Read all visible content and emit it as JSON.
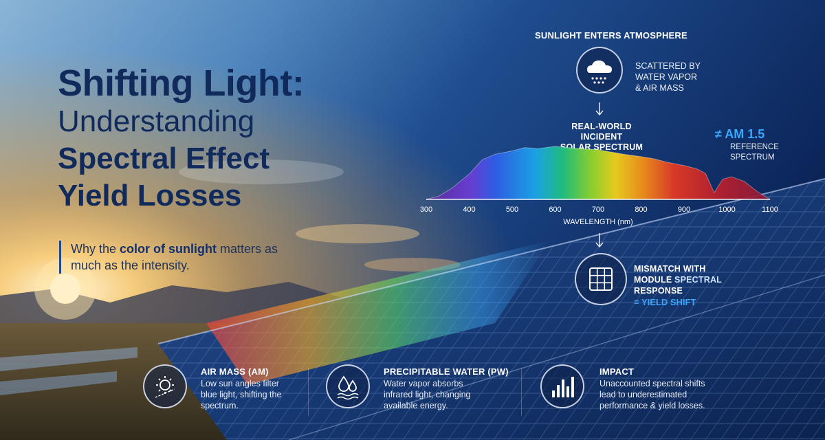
{
  "headline": {
    "line1": "Shifting Light:",
    "line2": "Understanding",
    "line3": "Spectral Effect",
    "line4": "Yield Losses"
  },
  "tagline": {
    "before": "Why the ",
    "emphasis": "color of sunlight",
    "after": " matters as much as the intensity."
  },
  "flow": {
    "step1_title": "SUNLIGHT ENTERS ATMOSPHERE",
    "step1_note_l1": "SCATTERED BY",
    "step1_note_l2": "WATER VAPOR",
    "step1_note_l3": "& AIR MASS",
    "step1_icon": "cloud-rain-icon",
    "step2_title_l1": "REAL-WORLD INCIDENT",
    "step2_title_l2": "SOLAR SPECTRUM",
    "compare_symbol": "≠",
    "compare_label": "AM 1.5",
    "compare_note_l1": "REFERENCE",
    "compare_note_l2": "SPECTRUM",
    "step3_l1": "MISMATCH WITH",
    "step3_l2a": "MODULE ",
    "step3_l2b": "SPECTRAL",
    "step3_l3": "RESPONSE",
    "step3_result": "= YIELD SHIFT",
    "step3_icon": "solar-panel-icon"
  },
  "chart_data": {
    "type": "area",
    "title": "",
    "xlabel": "WAVELENGTH (nm)",
    "ylabel": "",
    "xlim": [
      300,
      1100
    ],
    "grid": false,
    "x_ticks": [
      300,
      400,
      500,
      600,
      700,
      800,
      900,
      1000,
      1100
    ],
    "series": [
      {
        "x": [
          300,
          330,
          360,
          400,
          430,
          460,
          500,
          530,
          560,
          600,
          630,
          660,
          700,
          730,
          760,
          800,
          830,
          860,
          900,
          930,
          950,
          970,
          990,
          1010,
          1040,
          1070,
          1100
        ],
        "values": [
          0.0,
          0.06,
          0.2,
          0.45,
          0.7,
          0.8,
          0.86,
          0.92,
          0.9,
          0.94,
          0.92,
          0.9,
          0.88,
          0.84,
          0.8,
          0.76,
          0.72,
          0.66,
          0.6,
          0.54,
          0.46,
          0.12,
          0.36,
          0.4,
          0.32,
          0.14,
          0.0
        ]
      }
    ]
  },
  "features": [
    {
      "title": "AIR MASS (AM)",
      "body_l1": "Low sun angles filter",
      "body_l2": "blue light, shifting the",
      "body_l3": "spectrum.",
      "icon": "sun-angle-icon"
    },
    {
      "title": "PRECIPITABLE WATER (PW)",
      "body_l1": "Water vapor absorbs",
      "body_l2": "infrared light, changing",
      "body_l3": "available energy.",
      "icon": "water-drops-icon"
    },
    {
      "title": "IMPACT",
      "body_l1": "Unaccounted spectral shifts",
      "body_l2": "lead to underestimated",
      "body_l3": "performance & yield losses.",
      "icon": "bar-chart-icon"
    }
  ],
  "colors": {
    "headline": "#112a5c",
    "accent_blue": "#3aa7ff",
    "sky_top": "#0f2a66",
    "sunset": "#f4a63a"
  }
}
